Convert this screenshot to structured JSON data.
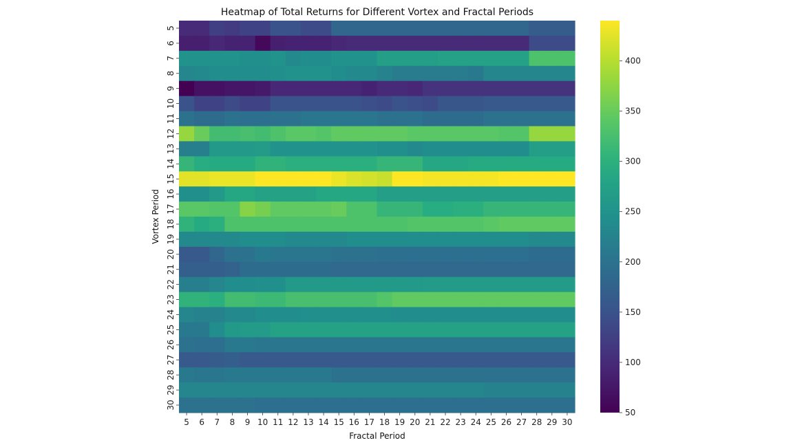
{
  "chart_data": {
    "type": "heatmap",
    "title": "Heatmap of Total Returns for Different Vortex and Fractal Periods",
    "xlabel": "Fractal Period",
    "ylabel": "Vortex Period",
    "x_categories": [
      "5",
      "6",
      "7",
      "8",
      "9",
      "10",
      "11",
      "12",
      "13",
      "14",
      "15",
      "16",
      "17",
      "18",
      "19",
      "20",
      "21",
      "22",
      "23",
      "24",
      "25",
      "26",
      "27",
      "28",
      "29",
      "30"
    ],
    "y_categories": [
      "5",
      "6",
      "7",
      "8",
      "9",
      "10",
      "11",
      "12",
      "13",
      "14",
      "15",
      "16",
      "17",
      "18",
      "19",
      "20",
      "21",
      "22",
      "23",
      "24",
      "25",
      "26",
      "27",
      "28",
      "29",
      "30"
    ],
    "colormap": "viridis",
    "colorbar": {
      "min": 50,
      "max": 440,
      "ticks": [
        50,
        100,
        150,
        200,
        250,
        300,
        350,
        400
      ]
    },
    "values": [
      [
        100,
        100,
        125,
        120,
        130,
        130,
        150,
        150,
        140,
        140,
        180,
        180,
        180,
        180,
        180,
        180,
        180,
        180,
        180,
        180,
        180,
        180,
        180,
        165,
        165,
        165
      ],
      [
        85,
        85,
        95,
        90,
        90,
        60,
        85,
        90,
        90,
        90,
        95,
        100,
        100,
        100,
        100,
        100,
        100,
        100,
        100,
        100,
        100,
        100,
        100,
        140,
        140,
        140
      ],
      [
        250,
        250,
        250,
        250,
        245,
        245,
        250,
        235,
        240,
        240,
        250,
        250,
        250,
        270,
        270,
        270,
        270,
        275,
        275,
        275,
        275,
        275,
        275,
        330,
        330,
        330
      ],
      [
        230,
        235,
        240,
        240,
        240,
        240,
        245,
        250,
        250,
        250,
        240,
        235,
        235,
        225,
        215,
        215,
        215,
        215,
        215,
        210,
        230,
        230,
        230,
        230,
        230,
        230
      ],
      [
        50,
        70,
        70,
        75,
        75,
        80,
        95,
        95,
        95,
        95,
        95,
        95,
        90,
        100,
        100,
        95,
        110,
        110,
        110,
        110,
        110,
        110,
        110,
        110,
        110,
        110
      ],
      [
        150,
        130,
        130,
        140,
        130,
        130,
        150,
        150,
        150,
        150,
        150,
        150,
        145,
        140,
        150,
        145,
        140,
        155,
        155,
        155,
        160,
        160,
        160,
        160,
        160,
        160
      ],
      [
        200,
        190,
        190,
        200,
        195,
        195,
        200,
        200,
        205,
        205,
        205,
        205,
        205,
        200,
        200,
        200,
        190,
        190,
        190,
        190,
        200,
        200,
        200,
        200,
        200,
        200
      ],
      [
        380,
        350,
        320,
        320,
        325,
        320,
        330,
        340,
        340,
        335,
        345,
        345,
        345,
        345,
        345,
        340,
        340,
        340,
        340,
        340,
        340,
        335,
        335,
        380,
        380,
        380
      ],
      [
        220,
        220,
        260,
        260,
        260,
        265,
        250,
        250,
        250,
        250,
        250,
        250,
        250,
        245,
        245,
        235,
        240,
        240,
        240,
        240,
        240,
        240,
        240,
        270,
        270,
        270
      ],
      [
        310,
        295,
        290,
        290,
        290,
        305,
        305,
        300,
        300,
        300,
        300,
        300,
        300,
        310,
        310,
        310,
        285,
        285,
        285,
        290,
        290,
        290,
        290,
        290,
        290,
        290
      ],
      [
        425,
        425,
        430,
        430,
        430,
        440,
        440,
        440,
        440,
        440,
        430,
        420,
        415,
        410,
        440,
        440,
        435,
        435,
        435,
        435,
        435,
        440,
        440,
        440,
        440,
        440
      ],
      [
        245,
        245,
        260,
        285,
        285,
        275,
        275,
        275,
        275,
        285,
        285,
        285,
        285,
        270,
        270,
        270,
        270,
        270,
        270,
        270,
        270,
        270,
        270,
        270,
        270,
        270
      ],
      [
        340,
        340,
        335,
        335,
        370,
        360,
        345,
        345,
        345,
        345,
        350,
        330,
        330,
        310,
        310,
        310,
        295,
        295,
        300,
        300,
        310,
        310,
        310,
        310,
        310,
        310
      ],
      [
        305,
        290,
        300,
        330,
        330,
        330,
        330,
        330,
        330,
        330,
        330,
        330,
        330,
        330,
        330,
        335,
        335,
        335,
        335,
        335,
        340,
        345,
        345,
        345,
        345,
        345
      ],
      [
        235,
        235,
        235,
        235,
        240,
        240,
        240,
        235,
        235,
        235,
        235,
        240,
        240,
        240,
        240,
        240,
        240,
        240,
        240,
        240,
        240,
        240,
        240,
        235,
        235,
        235
      ],
      [
        160,
        160,
        180,
        200,
        200,
        210,
        205,
        205,
        205,
        205,
        200,
        200,
        200,
        195,
        195,
        195,
        195,
        195,
        195,
        195,
        195,
        195,
        195,
        190,
        190,
        190
      ],
      [
        170,
        170,
        170,
        175,
        190,
        190,
        190,
        190,
        190,
        190,
        185,
        185,
        185,
        185,
        185,
        185,
        185,
        185,
        185,
        185,
        185,
        185,
        185,
        185,
        185,
        185
      ],
      [
        220,
        220,
        230,
        240,
        240,
        245,
        245,
        260,
        260,
        260,
        260,
        260,
        260,
        260,
        260,
        260,
        265,
        265,
        265,
        265,
        265,
        265,
        265,
        265,
        265,
        265
      ],
      [
        305,
        305,
        300,
        320,
        320,
        315,
        315,
        325,
        325,
        325,
        325,
        325,
        325,
        335,
        345,
        345,
        345,
        345,
        345,
        345,
        345,
        345,
        345,
        345,
        345,
        345
      ],
      [
        230,
        225,
        225,
        235,
        235,
        240,
        240,
        240,
        245,
        245,
        245,
        245,
        245,
        245,
        240,
        240,
        240,
        240,
        240,
        240,
        240,
        240,
        240,
        240,
        240,
        240
      ],
      [
        210,
        210,
        240,
        260,
        265,
        265,
        275,
        275,
        275,
        275,
        275,
        275,
        275,
        275,
        275,
        275,
        275,
        275,
        275,
        275,
        275,
        275,
        275,
        275,
        275,
        275
      ],
      [
        200,
        195,
        195,
        210,
        210,
        205,
        205,
        205,
        205,
        205,
        205,
        205,
        205,
        205,
        205,
        205,
        205,
        205,
        205,
        205,
        205,
        205,
        205,
        205,
        205,
        205
      ],
      [
        160,
        160,
        165,
        170,
        160,
        160,
        160,
        160,
        160,
        160,
        160,
        160,
        160,
        160,
        160,
        160,
        160,
        160,
        160,
        160,
        160,
        160,
        160,
        160,
        160,
        160
      ],
      [
        210,
        205,
        205,
        210,
        210,
        210,
        210,
        210,
        210,
        210,
        200,
        200,
        200,
        200,
        200,
        200,
        200,
        200,
        200,
        200,
        200,
        200,
        200,
        200,
        200,
        200
      ],
      [
        230,
        230,
        230,
        230,
        230,
        230,
        230,
        230,
        230,
        230,
        230,
        230,
        230,
        230,
        230,
        230,
        230,
        230,
        230,
        230,
        225,
        225,
        225,
        225,
        225,
        225
      ],
      [
        200,
        200,
        200,
        200,
        200,
        195,
        195,
        195,
        195,
        195,
        195,
        195,
        195,
        195,
        195,
        195,
        195,
        195,
        195,
        195,
        195,
        195,
        195,
        195,
        195,
        195
      ]
    ]
  }
}
